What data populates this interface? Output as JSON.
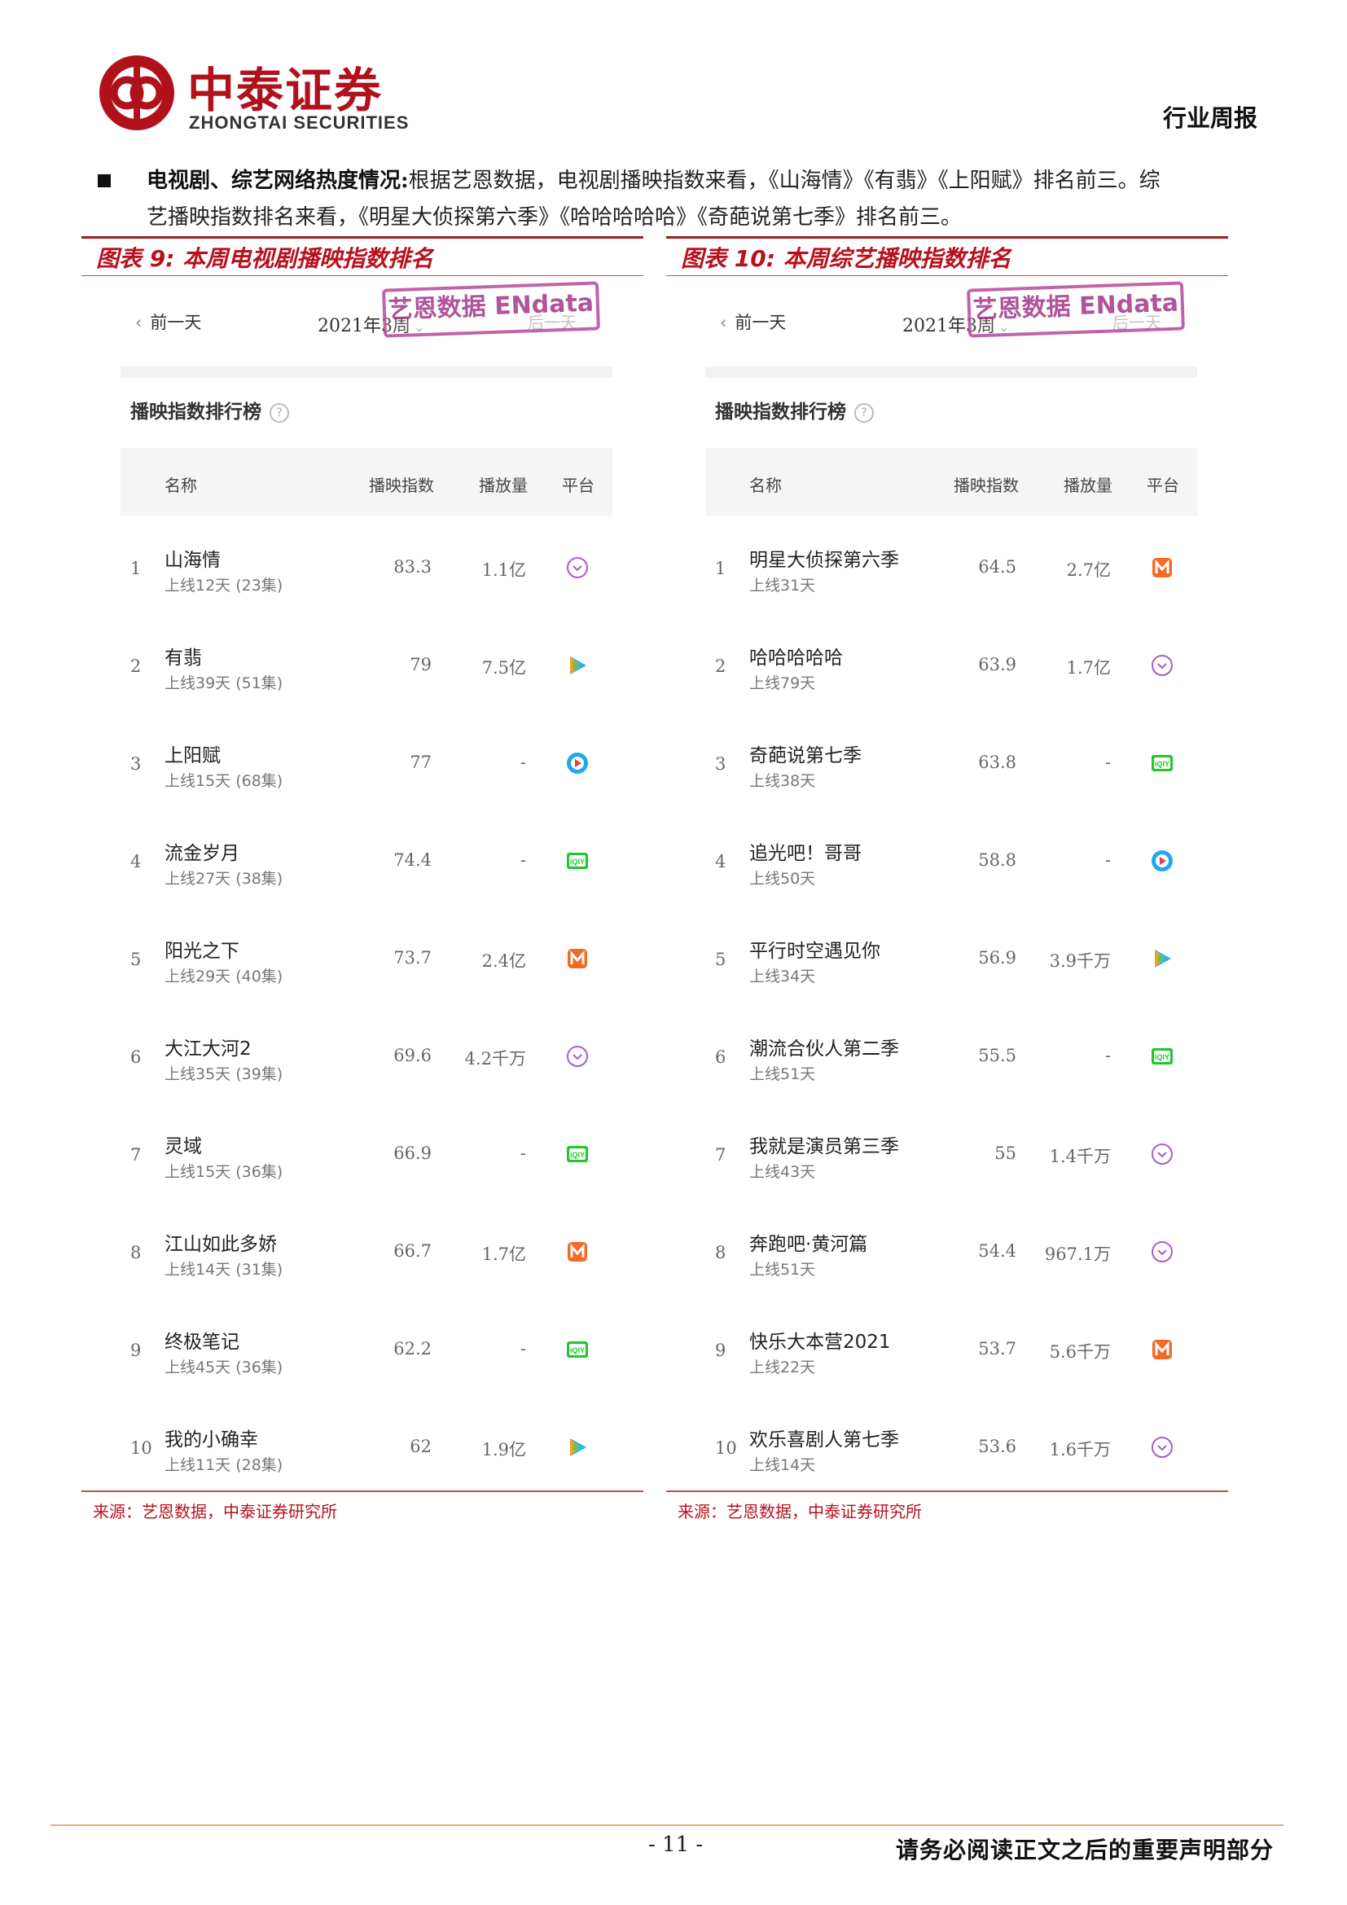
{
  "header": {
    "brand_cn": "中泰证券",
    "brand_en": "ZHONGTAI SECURITIES",
    "report_type": "行业周报"
  },
  "intro": {
    "heading": "电视剧、综艺网络热度情况:",
    "line1_rest": "根据艺恩数据，电视剧播映指数来看，《山海情》《有翡》《上阳赋》排名前三。综",
    "line2": "艺播映指数排名来看，《明星大侦探第六季》《哈哈哈哈哈》《奇葩说第七季》排名前三。"
  },
  "colors": {
    "accent": "#b8111d",
    "stamp": "#a3378a"
  },
  "figures": [
    {
      "title": "图表 9:  本周电视剧播映指数排名",
      "source": "来源：艺恩数据，中泰证券研究所",
      "stamp": "艺恩数据 ENdata",
      "nav_prev": "前一天",
      "nav_week": "2021年3周",
      "nav_next": "后一天",
      "rank_title": "播映指数排行榜",
      "columns": {
        "name": "名称",
        "index": "播映指数",
        "volume": "播放量",
        "platform": "平台"
      },
      "rows": [
        {
          "rank": "1",
          "name": "山海情",
          "sub": "上线12天 (23集)",
          "index": "83.3",
          "volume": "1.1亿",
          "platform": "tencent-icon"
        },
        {
          "rank": "2",
          "name": "有翡",
          "sub": "上线39天 (51集)",
          "index": "79",
          "volume": "7.5亿",
          "platform": "tencent-video-icon"
        },
        {
          "rank": "3",
          "name": "上阳赋",
          "sub": "上线15天 (68集)",
          "index": "77",
          "volume": "-",
          "platform": "youku-icon"
        },
        {
          "rank": "4",
          "name": "流金岁月",
          "sub": "上线27天 (38集)",
          "index": "74.4",
          "volume": "-",
          "platform": "iqiyi-icon"
        },
        {
          "rank": "5",
          "name": "阳光之下",
          "sub": "上线29天 (40集)",
          "index": "73.7",
          "volume": "2.4亿",
          "platform": "mango-icon"
        },
        {
          "rank": "6",
          "name": "大江大河2",
          "sub": "上线35天 (39集)",
          "index": "69.6",
          "volume": "4.2千万",
          "platform": "tencent-icon"
        },
        {
          "rank": "7",
          "name": "灵域",
          "sub": "上线15天 (36集)",
          "index": "66.9",
          "volume": "-",
          "platform": "iqiyi-icon"
        },
        {
          "rank": "8",
          "name": "江山如此多娇",
          "sub": "上线14天 (31集)",
          "index": "66.7",
          "volume": "1.7亿",
          "platform": "mango-icon"
        },
        {
          "rank": "9",
          "name": "终极笔记",
          "sub": "上线45天 (36集)",
          "index": "62.2",
          "volume": "-",
          "platform": "iqiyi-icon"
        },
        {
          "rank": "10",
          "name": "我的小确幸",
          "sub": "上线11天 (28集)",
          "index": "62",
          "volume": "1.9亿",
          "platform": "tencent-video-icon"
        }
      ]
    },
    {
      "title": "图表 10:  本周综艺播映指数排名",
      "source": "来源：艺恩数据，中泰证券研究所",
      "stamp": "艺恩数据 ENdata",
      "nav_prev": "前一天",
      "nav_week": "2021年3周",
      "nav_next": "后一天",
      "rank_title": "播映指数排行榜",
      "columns": {
        "name": "名称",
        "index": "播映指数",
        "volume": "播放量",
        "platform": "平台"
      },
      "rows": [
        {
          "rank": "1",
          "name": "明星大侦探第六季",
          "sub": "上线31天",
          "index": "64.5",
          "volume": "2.7亿",
          "platform": "mango-icon"
        },
        {
          "rank": "2",
          "name": "哈哈哈哈哈",
          "sub": "上线79天",
          "index": "63.9",
          "volume": "1.7亿",
          "platform": "tencent-icon"
        },
        {
          "rank": "3",
          "name": "奇葩说第七季",
          "sub": "上线38天",
          "index": "63.8",
          "volume": "-",
          "platform": "iqiyi-icon"
        },
        {
          "rank": "4",
          "name": "追光吧！哥哥",
          "sub": "上线50天",
          "index": "58.8",
          "volume": "-",
          "platform": "youku-icon"
        },
        {
          "rank": "5",
          "name": "平行时空遇见你",
          "sub": "上线34天",
          "index": "56.9",
          "volume": "3.9千万",
          "platform": "tencent-video-icon"
        },
        {
          "rank": "6",
          "name": "潮流合伙人第二季",
          "sub": "上线51天",
          "index": "55.5",
          "volume": "-",
          "platform": "iqiyi-icon"
        },
        {
          "rank": "7",
          "name": "我就是演员第三季",
          "sub": "上线43天",
          "index": "55",
          "volume": "1.4千万",
          "platform": "tencent-icon"
        },
        {
          "rank": "8",
          "name": "奔跑吧·黄河篇",
          "sub": "上线51天",
          "index": "54.4",
          "volume": "967.1万",
          "platform": "tencent-icon"
        },
        {
          "rank": "9",
          "name": "快乐大本营2021",
          "sub": "上线22天",
          "index": "53.7",
          "volume": "5.6千万",
          "platform": "mango-icon"
        },
        {
          "rank": "10",
          "name": "欢乐喜剧人第七季",
          "sub": "上线14天",
          "index": "53.6",
          "volume": "1.6千万",
          "platform": "tencent-icon"
        }
      ]
    }
  ],
  "footer": {
    "page_number": "- 11 -",
    "disclaimer": "请务必阅读正文之后的重要声明部分"
  }
}
